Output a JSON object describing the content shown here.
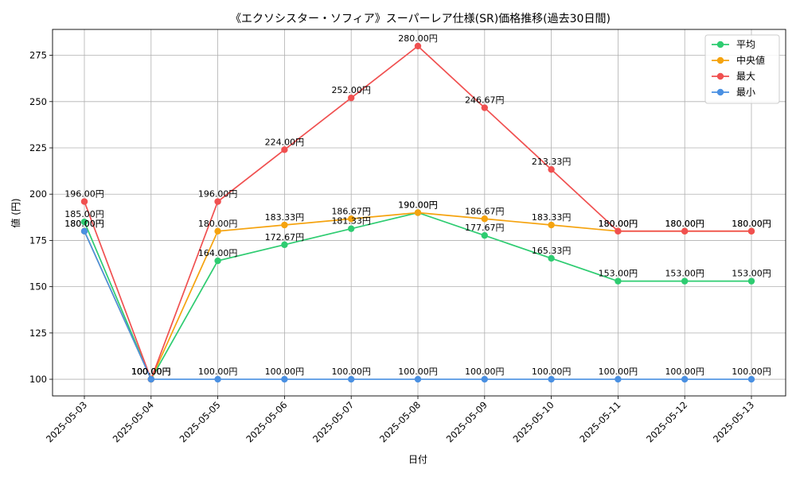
{
  "chart_data": {
    "type": "line",
    "title": "《エクソシスター・ソフィア》スーパーレア仕様(SR)価格推移(過去30日間)",
    "xlabel": "日付",
    "ylabel": "値 (円)",
    "categories": [
      "2025-05-03",
      "2025-05-04",
      "2025-05-05",
      "2025-05-06",
      "2025-05-07",
      "2025-05-08",
      "2025-05-09",
      "2025-05-10",
      "2025-05-11",
      "2025-05-12",
      "2025-05-13"
    ],
    "ylim": [
      91,
      289
    ],
    "yticks": [
      100,
      125,
      150,
      175,
      200,
      225,
      250,
      275
    ],
    "grid": true,
    "legend_position": "top-right",
    "series": [
      {
        "name": "平均",
        "color": "#2ecc71",
        "values": [
          185.0,
          100.0,
          164.0,
          172.67,
          181.33,
          190.0,
          177.67,
          165.33,
          153.0,
          153.0,
          153.0
        ],
        "labels": [
          "185.00円",
          "100.00円",
          "164.00円",
          "172.67円",
          "181.33円",
          "190.00円",
          "177.67円",
          "165.33円",
          "153.00円",
          "153.00円",
          "153.00円"
        ]
      },
      {
        "name": "中央値",
        "color": "#f5a30f",
        "values": [
          180.0,
          100.0,
          180.0,
          183.33,
          186.67,
          190.0,
          186.67,
          183.33,
          180.0,
          180.0,
          180.0
        ],
        "labels": [
          "180.00円",
          "100.00円",
          "180.00円",
          "183.33円",
          "186.67円",
          "190.00円",
          "186.67円",
          "183.33円",
          "180.00円",
          "180.00円",
          "180.00円"
        ]
      },
      {
        "name": "最大",
        "color": "#f05050",
        "values": [
          196.0,
          100.0,
          196.0,
          224.0,
          252.0,
          280.0,
          246.67,
          213.33,
          180.0,
          180.0,
          180.0
        ],
        "labels": [
          "196.00円",
          "100.00円",
          "196.00円",
          "224.00円",
          "252.00円",
          "280.00円",
          "246.67円",
          "213.33円",
          "180.00円",
          "180.00円",
          "180.00円"
        ]
      },
      {
        "name": "最小",
        "color": "#4a90e2",
        "values": [
          180.0,
          100.0,
          100.0,
          100.0,
          100.0,
          100.0,
          100.0,
          100.0,
          100.0,
          100.0,
          100.0
        ],
        "labels": [
          "180.00円",
          "100.00円",
          "100.00円",
          "100.00円",
          "100.00円",
          "100.00円",
          "100.00円",
          "100.00円",
          "100.00円",
          "100.00円",
          "100.00円"
        ]
      }
    ]
  }
}
